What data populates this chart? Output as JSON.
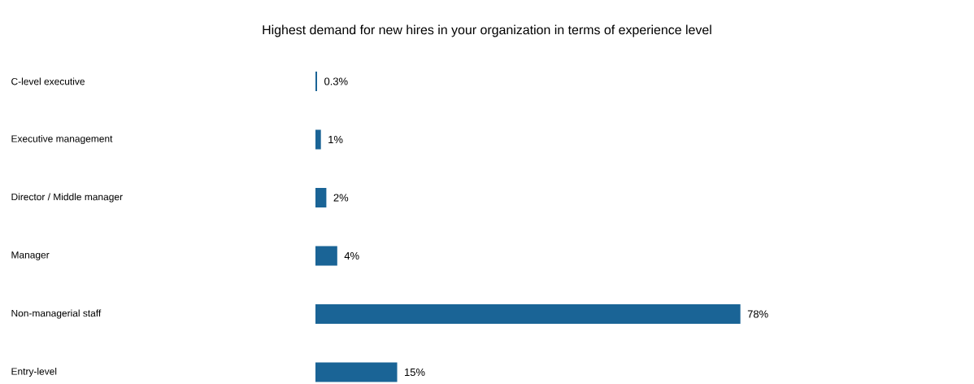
{
  "chart_data": {
    "type": "bar",
    "orientation": "horizontal",
    "title": "Highest demand for new hires in your organization in terms of experience level",
    "categories": [
      "C-level executive",
      "Executive management",
      "Director / Middle manager",
      "Manager",
      "Non-managerial staff",
      "Entry-level"
    ],
    "values": [
      0.3,
      1,
      2,
      4,
      78,
      15
    ],
    "value_labels": [
      "0.3%",
      "1%",
      "2%",
      "4%",
      "78%",
      "15%"
    ],
    "color": "#1a6496"
  }
}
